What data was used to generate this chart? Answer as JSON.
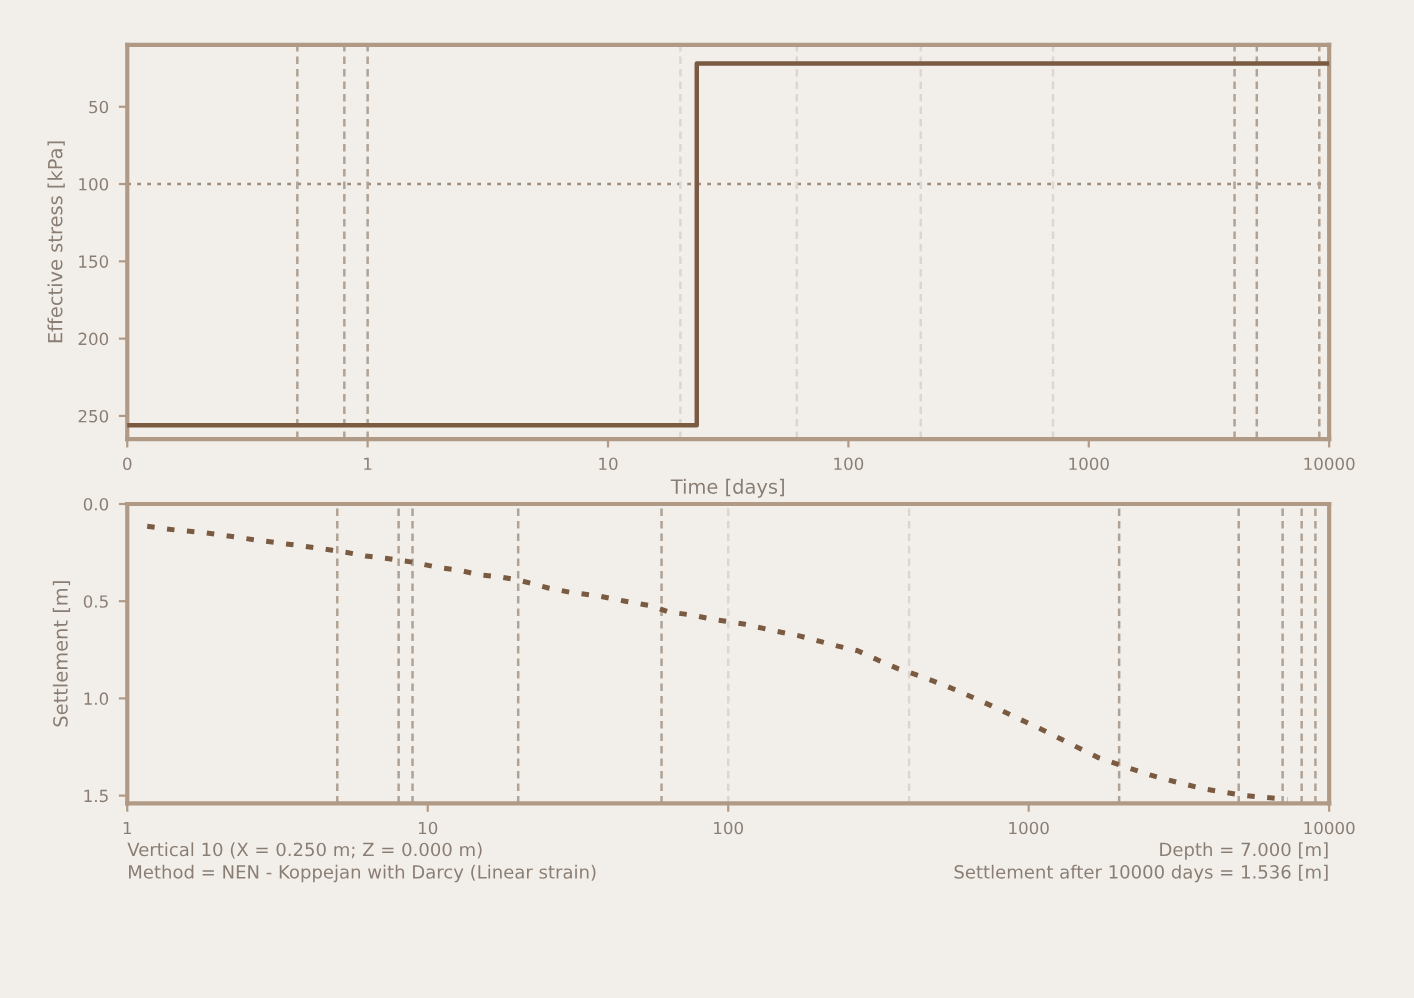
{
  "chart_data": [
    {
      "type": "line",
      "xlabel": "Time [days]",
      "ylabel": "Effective stress [kPa]",
      "log": "x",
      "xlim": [
        0.1,
        10000
      ],
      "xticks": [
        {
          "value": 0.1,
          "label": "0"
        },
        1,
        10,
        100,
        1000,
        10000
      ],
      "ylim": [
        265,
        10
      ],
      "yticks": [
        50,
        100,
        150,
        200,
        250
      ],
      "grid": false,
      "line_style": "solid",
      "marker": "none",
      "x": [
        0.1,
        23.4,
        23.4,
        10000
      ],
      "series": [
        {
          "color": "#7a5a40",
          "values": [
            256,
            256,
            22,
            22
          ]
        }
      ],
      "ref_lines": [
        {
          "axis": "y",
          "value": 100,
          "color": "#a08c7a",
          "line_style": "dotted"
        },
        {
          "axis": "x",
          "value": 0.51,
          "color": "#b0a294",
          "line_style": "dashed"
        },
        {
          "axis": "x",
          "value": 0.8,
          "color": "#b0a294",
          "line_style": "dashed"
        },
        {
          "axis": "x",
          "value": 1.0,
          "color": "#b0a294",
          "line_style": "dashed"
        },
        {
          "axis": "x",
          "value": 20,
          "color": "#ddd6ce",
          "line_style": "dashed"
        },
        {
          "axis": "x",
          "value": 61,
          "color": "#ddd6ce",
          "line_style": "dashed"
        },
        {
          "axis": "x",
          "value": 200,
          "color": "#ddd6ce",
          "line_style": "dashed"
        },
        {
          "axis": "x",
          "value": 710,
          "color": "#ddd6ce",
          "line_style": "dashed"
        },
        {
          "axis": "x",
          "value": 4040,
          "color": "#b0a294",
          "line_style": "dashed"
        },
        {
          "axis": "x",
          "value": 5000,
          "color": "#b0a294",
          "line_style": "dashed"
        },
        {
          "axis": "x",
          "value": 9100,
          "color": "#b0a294",
          "line_style": "dashed"
        }
      ]
    },
    {
      "type": "line",
      "ylabel": "Settlement [m]",
      "log": "x",
      "xlim": [
        1,
        10000
      ],
      "xticks": [
        1,
        10,
        100,
        1000,
        10000
      ],
      "ylim": [
        1.54,
        0
      ],
      "yticks": [
        {
          "value": 0,
          "label": "0.0"
        },
        0.5,
        {
          "value": 1,
          "label": "1.0"
        },
        1.5
      ],
      "grid": false,
      "line_style": "dotted",
      "marker": "none",
      "x": [
        1.165,
        1.45,
        1.78,
        2.07,
        2.36,
        2.74,
        3.2,
        3.63,
        4.81,
        5.33,
        6.21,
        7.23,
        8.87,
        10.9,
        12.7,
        14.8,
        17.2,
        20,
        25.2,
        30.2,
        37,
        45.4,
        55.6,
        63.2,
        75.5,
        88.1,
        100,
        114,
        143,
        171,
        199,
        232,
        270,
        315,
        367,
        428,
        524,
        611,
        750,
        919,
        1127,
        1383,
        1695,
        2080,
        2550,
        3130,
        3840,
        5080,
        5920,
        7260
      ],
      "series": [
        {
          "color": "#7a5a40",
          "values": [
            0.115,
            0.134,
            0.146,
            0.16,
            0.173,
            0.187,
            0.201,
            0.211,
            0.238,
            0.248,
            0.268,
            0.279,
            0.299,
            0.327,
            0.34,
            0.364,
            0.374,
            0.391,
            0.432,
            0.456,
            0.473,
            0.5,
            0.524,
            0.555,
            0.571,
            0.592,
            0.605,
            0.619,
            0.653,
            0.677,
            0.704,
            0.731,
            0.755,
            0.803,
            0.847,
            0.881,
            0.932,
            0.976,
            1.037,
            1.102,
            1.166,
            1.235,
            1.303,
            1.35,
            1.395,
            1.432,
            1.466,
            1.497,
            1.507,
            1.52
          ]
        }
      ],
      "ref_lines": [
        {
          "axis": "x",
          "value": 5,
          "color": "#b0a294",
          "line_style": "dashed"
        },
        {
          "axis": "x",
          "value": 8,
          "color": "#b0a294",
          "line_style": "dashed"
        },
        {
          "axis": "x",
          "value": 8.9,
          "color": "#b0a294",
          "line_style": "dashed"
        },
        {
          "axis": "x",
          "value": 20,
          "color": "#b0a294",
          "line_style": "dashed"
        },
        {
          "axis": "x",
          "value": 60,
          "color": "#b0a294",
          "line_style": "dashed"
        },
        {
          "axis": "x",
          "value": 100,
          "color": "#ddd6ce",
          "line_style": "dashed"
        },
        {
          "axis": "x",
          "value": 400,
          "color": "#ddd6ce",
          "line_style": "dashed"
        },
        {
          "axis": "x",
          "value": 2000,
          "color": "#b0a294",
          "line_style": "dashed"
        },
        {
          "axis": "x",
          "value": 5000,
          "color": "#b0a294",
          "line_style": "dashed"
        },
        {
          "axis": "x",
          "value": 7000,
          "color": "#b0a294",
          "line_style": "dashed"
        },
        {
          "axis": "x",
          "value": 8100,
          "color": "#b0a294",
          "line_style": "dashed"
        },
        {
          "axis": "x",
          "value": 9000,
          "color": "#b0a294",
          "line_style": "dashed"
        }
      ],
      "annotations": [
        "Vertical 10 (X = 0.250 m; Z = 0.000 m)",
        "Depth = 7.000 [m]",
        "Method = NEN - Koppejan with Darcy (Linear strain)",
        "Settlement after 10000 days = 1.536 [m]"
      ]
    }
  ]
}
